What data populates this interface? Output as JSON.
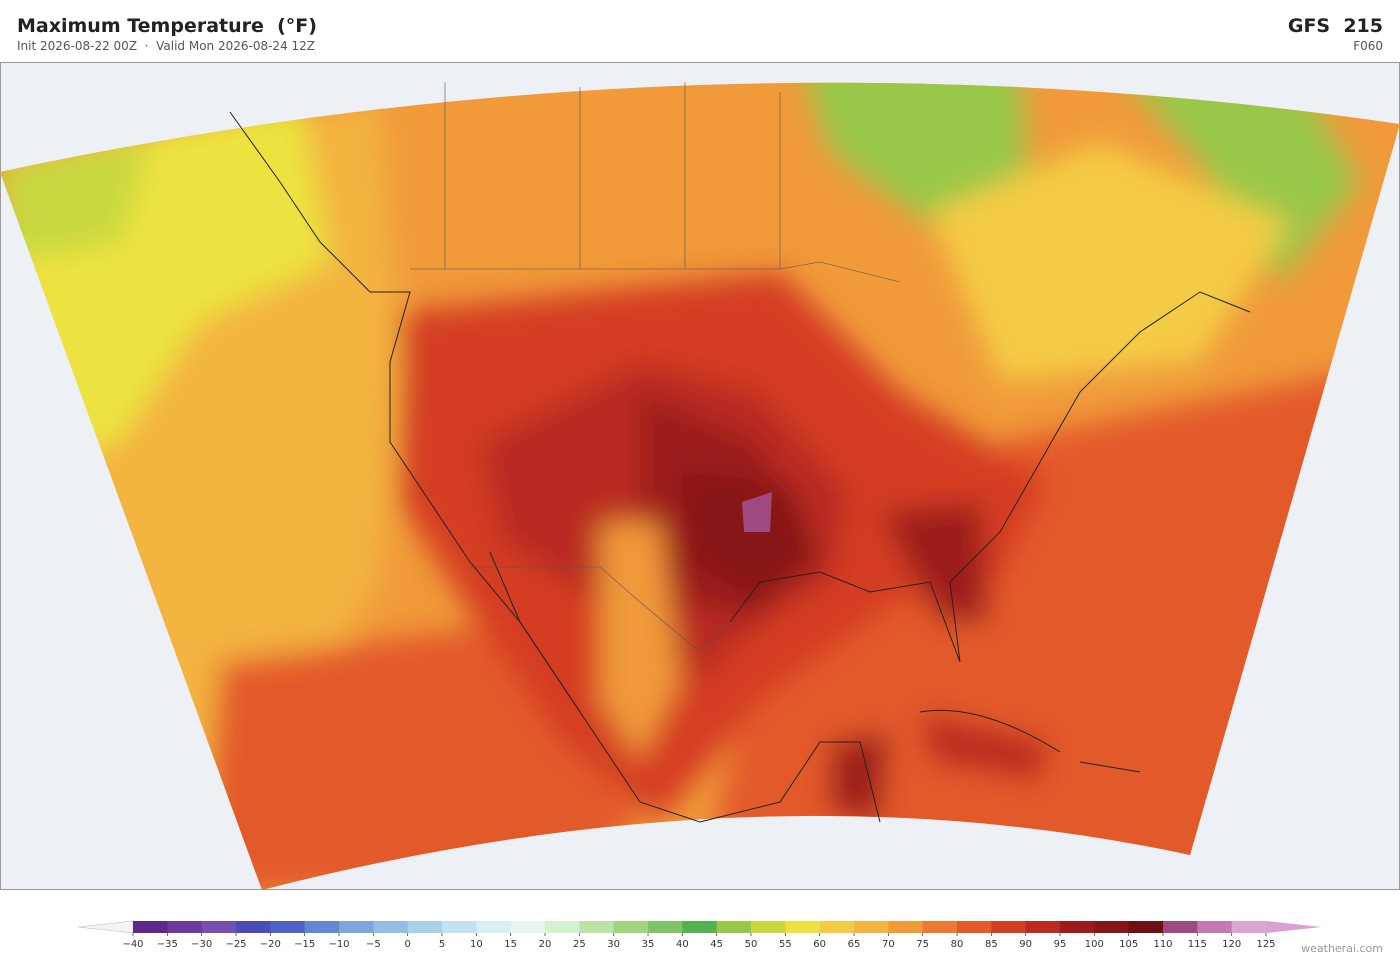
{
  "header": {
    "title": "Maximum Temperature  (°F)",
    "subtitle": "Init 2026-08-22 00Z  ·  Valid Mon 2026-08-24 12Z",
    "model": "GFS  215",
    "forecast_hour": "F060"
  },
  "colorbar": {
    "ticks": [
      {
        "value": -40,
        "label": "−40"
      },
      {
        "value": -35,
        "label": "−35"
      },
      {
        "value": -30,
        "label": "−30"
      },
      {
        "value": -25,
        "label": "−25"
      },
      {
        "value": -20,
        "label": "−20"
      },
      {
        "value": -15,
        "label": "−15"
      },
      {
        "value": -10,
        "label": "−10"
      },
      {
        "value": -5,
        "label": "−5"
      },
      0,
      5,
      10,
      15,
      20,
      25,
      30,
      35,
      40,
      45,
      50,
      55,
      60,
      65,
      70,
      75,
      80,
      85,
      90,
      95,
      100,
      105,
      110,
      115,
      120,
      125
    ],
    "colors": [
      "#5b2a8c",
      "#6a3a9e",
      "#7650b0",
      "#4a4ab8",
      "#4f62c8",
      "#6586d4",
      "#7ea6dc",
      "#93bde3",
      "#a9d1ea",
      "#c2e2ef",
      "#d9eff2",
      "#e6f5ef",
      "#d6efd0",
      "#bde3a4",
      "#a0d57f",
      "#7fc567",
      "#55b04f",
      "#98c84a",
      "#c8d83f",
      "#ece341",
      "#f4cb45",
      "#f3b440",
      "#f09a3a",
      "#ec7a32",
      "#e35a2a",
      "#d43e24",
      "#b92a22",
      "#9c1c1e",
      "#871619",
      "#6f0f16",
      "#9e4a80",
      "#c47ab0",
      "#dba6cf"
    ],
    "under_color": "#f3f3f3",
    "over_color": "#d9a0d0"
  },
  "footer": {
    "credit": "weatherai.com"
  }
}
